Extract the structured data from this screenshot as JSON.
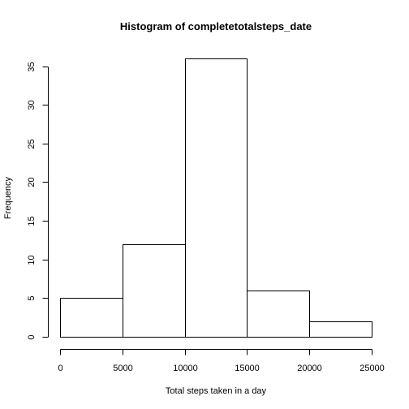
{
  "chart_data": {
    "type": "bar",
    "title": "Histogram of completetotalsteps_date",
    "xlabel": "Total steps taken in a day",
    "ylabel": "Frequency",
    "bins": [
      {
        "from": 0,
        "to": 5000,
        "count": 5
      },
      {
        "from": 5000,
        "to": 10000,
        "count": 12
      },
      {
        "from": 10000,
        "to": 15000,
        "count": 36
      },
      {
        "from": 15000,
        "to": 20000,
        "count": 6
      },
      {
        "from": 20000,
        "to": 25000,
        "count": 2
      }
    ],
    "xlim": [
      0,
      25000
    ],
    "ylim": [
      0,
      36
    ],
    "xticks": [
      0,
      5000,
      10000,
      15000,
      20000,
      25000
    ],
    "yticks": [
      0,
      5,
      10,
      15,
      20,
      25,
      30,
      35
    ],
    "grid": false,
    "legend": "none",
    "colors": {
      "bar_fill": "#ffffff",
      "bar_stroke": "#000000"
    }
  }
}
